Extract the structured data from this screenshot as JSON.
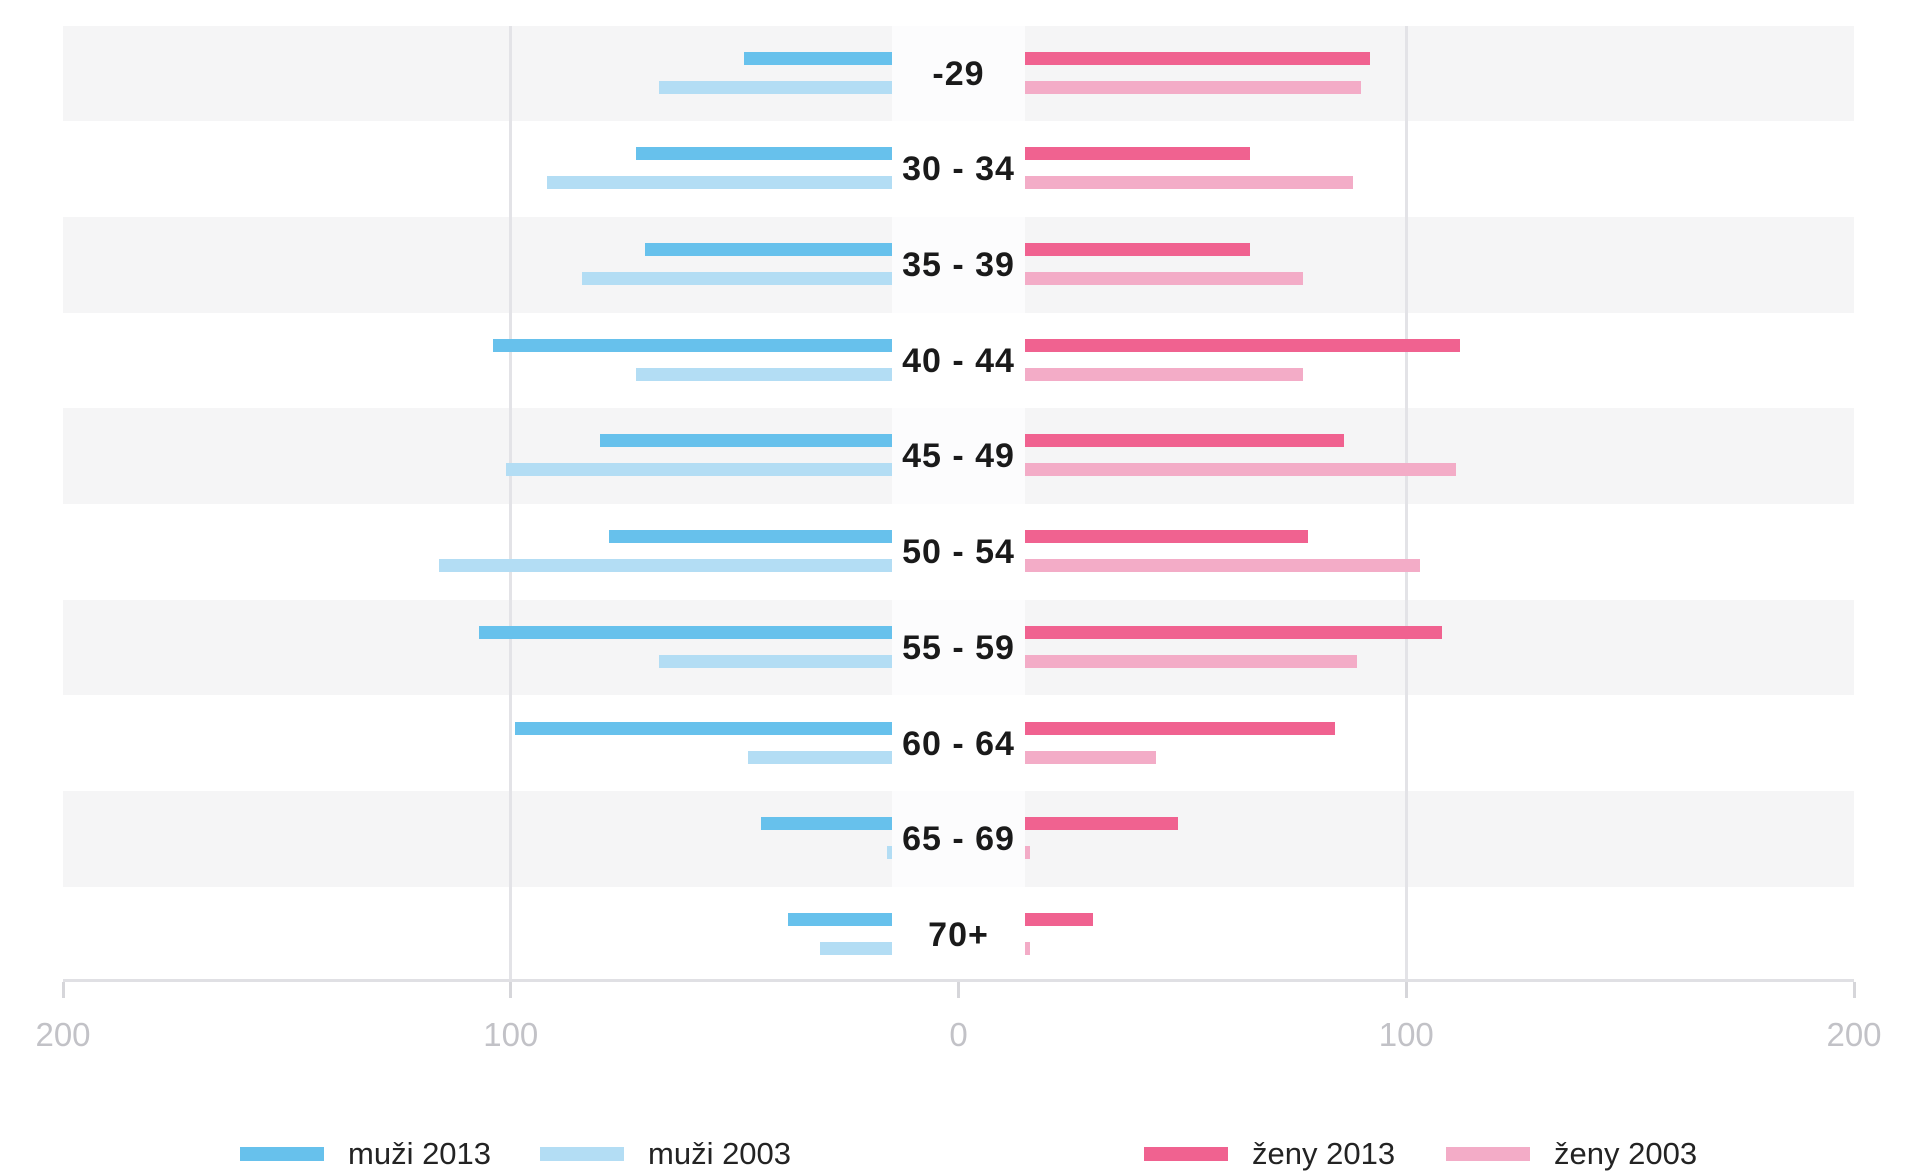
{
  "chart_data": {
    "type": "bar",
    "subtype": "population-pyramid-horizontal",
    "title": "",
    "xlabel": "",
    "ylabel": "",
    "categories": [
      "-29",
      "30 - 34",
      "35 - 39",
      "40 - 44",
      "45 - 49",
      "50 - 54",
      "55 - 59",
      "60 - 64",
      "65 - 69",
      "70+"
    ],
    "series": [
      {
        "name": "muži 2013",
        "side": "left",
        "year": 2013,
        "color": "#67C1EC",
        "values": [
          48,
          72,
          70,
          104,
          80,
          78,
          107,
          99,
          44,
          38
        ]
      },
      {
        "name": "muži 2003",
        "side": "left",
        "year": 2003,
        "color": "#B3DDF4",
        "values": [
          67,
          92,
          84,
          72,
          101,
          116,
          67,
          47,
          16,
          31
        ]
      },
      {
        "name": "ženy 2013",
        "side": "right",
        "year": 2013,
        "color": "#F06290",
        "values": [
          92,
          65,
          65,
          112,
          86,
          78,
          108,
          84,
          49,
          30
        ]
      },
      {
        "name": "ženy 2003",
        "side": "right",
        "year": 2003,
        "color": "#F3ACC7",
        "values": [
          90,
          88,
          77,
          77,
          111,
          103,
          89,
          44,
          16,
          16
        ]
      }
    ],
    "x_axis": {
      "range": [
        -200,
        200
      ],
      "ticks": [
        {
          "label": "200",
          "value": -200
        },
        {
          "label": "100",
          "value": -100
        },
        {
          "label": "0",
          "value": 0
        },
        {
          "label": "100",
          "value": 100
        },
        {
          "label": "200",
          "value": 200
        }
      ],
      "gridlines": [
        -100,
        100
      ]
    },
    "legend": {
      "position": "bottom",
      "items": [
        {
          "label": "muži 2013",
          "color": "#67C1EC"
        },
        {
          "label": "muži 2003",
          "color": "#B3DDF4"
        },
        {
          "label": "ženy 2013",
          "color": "#F06290"
        },
        {
          "label": "ženy 2003",
          "color": "#F3ACC7"
        }
      ]
    },
    "style_colors": {
      "row_stripe": "#f5f5f6",
      "gridline": "#e3e3e7",
      "axis_line": "#e0e0e4",
      "tick": "#d6d6da",
      "tick_label": "#c2c2c7",
      "row_label": "#1a1a1a",
      "legend_text": "#232323"
    }
  }
}
